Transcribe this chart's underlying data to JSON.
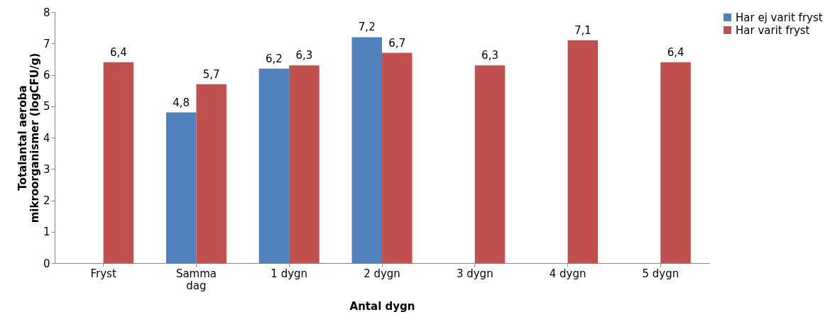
{
  "chart_data": {
    "type": "bar",
    "xlabel": "Antal dygn",
    "ylabel": "Totalantal aeroba mikroorganismer (logCFU/g)",
    "categories": [
      "Fryst",
      "Samma dag",
      "1 dygn",
      "2 dygn",
      "3 dygn",
      "4 dygn",
      "5 dygn"
    ],
    "series": [
      {
        "name": "Har ej varit fryst",
        "color": "#4f81bd",
        "values": [
          null,
          4.8,
          6.2,
          7.2,
          null,
          null,
          null
        ],
        "value_labels": [
          null,
          "4,8",
          "6,2",
          "7,2",
          null,
          null,
          null
        ]
      },
      {
        "name": "Har varit fryst",
        "color": "#c0504d",
        "values": [
          6.4,
          5.7,
          6.3,
          6.7,
          6.3,
          7.1,
          6.4
        ],
        "value_labels": [
          "6,4",
          "5,7",
          "6,3",
          "6,7",
          "6,3",
          "7,1",
          "6,4"
        ]
      }
    ],
    "ylim": [
      0,
      8
    ],
    "yticks": [
      0,
      1,
      2,
      3,
      4,
      5,
      6,
      7,
      8
    ],
    "grid": false,
    "legend": "right"
  }
}
